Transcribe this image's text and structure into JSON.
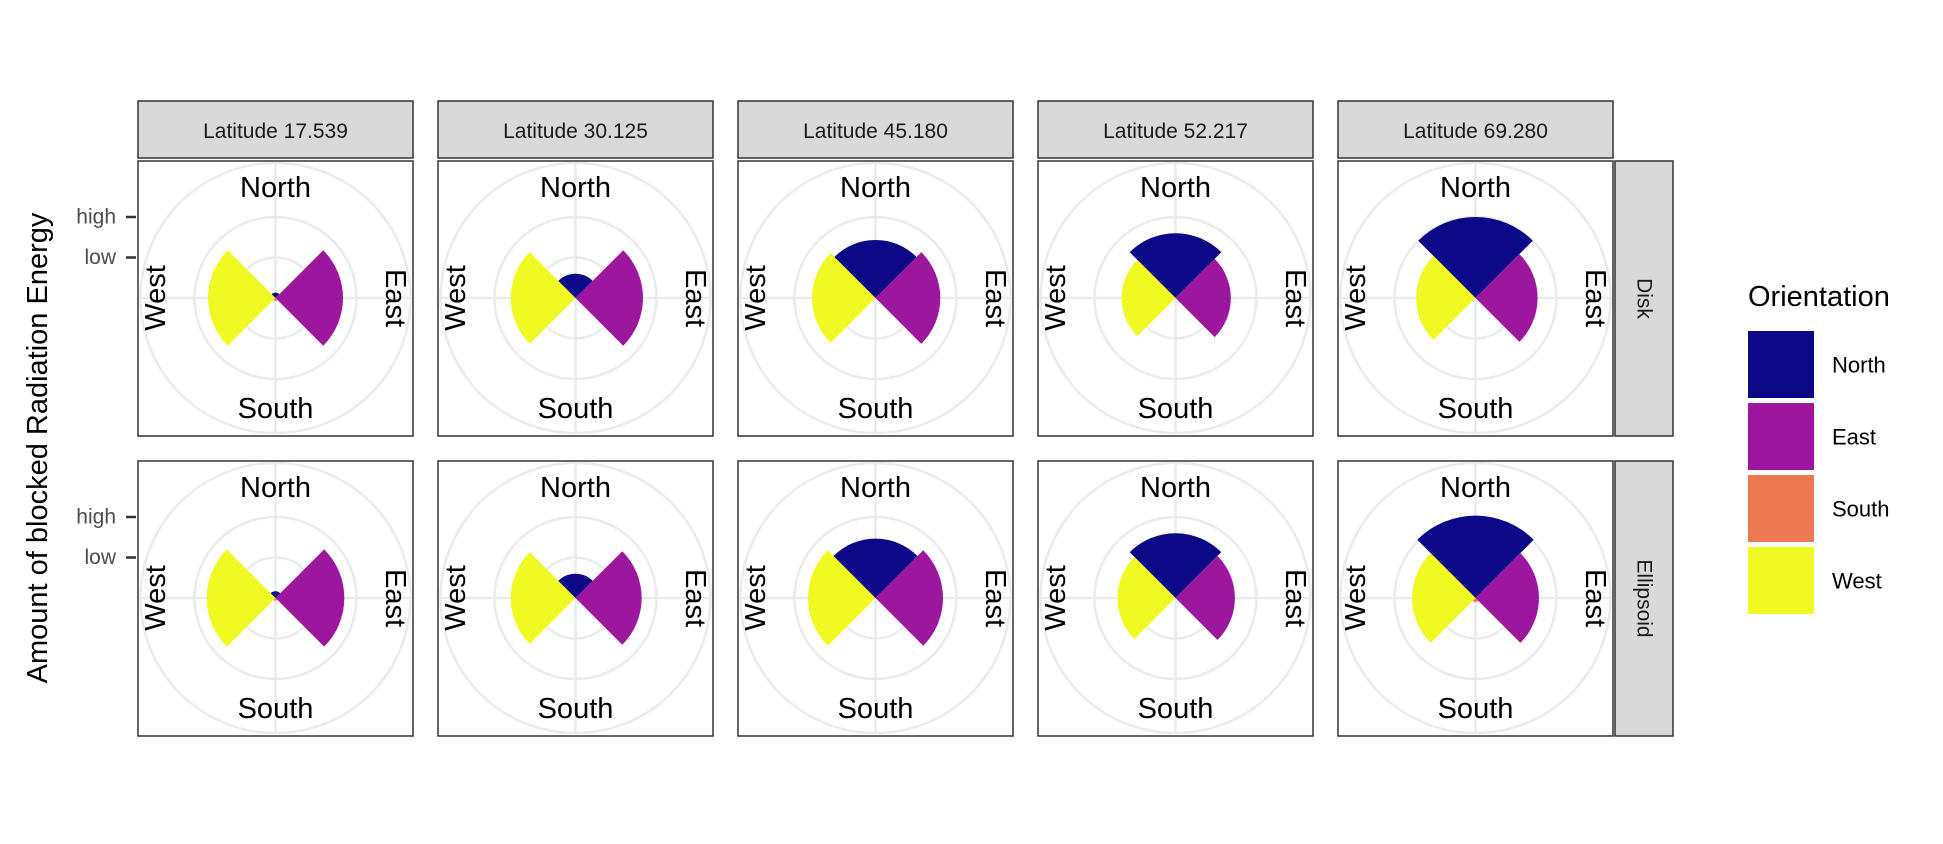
{
  "chart_data": {
    "type": "polar-bar",
    "ylabel": "Amount of blocked Radiation Energy",
    "y_ticks": [
      {
        "label": "low",
        "value": 0.3
      },
      {
        "label": "high",
        "value": 0.6
      }
    ],
    "ylim": [
      0,
      1
    ],
    "directions": [
      "North",
      "East",
      "South",
      "West"
    ],
    "columns": [
      "Latitude 17.539",
      "Latitude 30.125",
      "Latitude 45.180",
      "Latitude 52.217",
      "Latitude 69.280"
    ],
    "rows": [
      "Disk",
      "Ellipsoid"
    ],
    "legend": {
      "title": "Orientation",
      "entries": [
        {
          "label": "North",
          "color": "#0d0887"
        },
        {
          "label": "East",
          "color": "#9c179e"
        },
        {
          "label": "South",
          "color": "#ed7953"
        },
        {
          "label": "West",
          "color": "#f0f921"
        }
      ]
    },
    "panels": [
      {
        "row": "Disk",
        "column": "Latitude 17.539",
        "North": 0.04,
        "East": 0.5,
        "South": 0.02,
        "West": 0.5
      },
      {
        "row": "Disk",
        "column": "Latitude 30.125",
        "North": 0.18,
        "East": 0.5,
        "South": 0.0,
        "West": 0.48
      },
      {
        "row": "Disk",
        "column": "Latitude 45.180",
        "North": 0.43,
        "East": 0.48,
        "South": 0.0,
        "West": 0.47
      },
      {
        "row": "Disk",
        "column": "Latitude 52.217",
        "North": 0.48,
        "East": 0.41,
        "South": 0.0,
        "West": 0.4
      },
      {
        "row": "Disk",
        "column": "Latitude 69.280",
        "North": 0.6,
        "East": 0.46,
        "South": 0.0,
        "West": 0.44
      },
      {
        "row": "Ellipsoid",
        "column": "Latitude 17.539",
        "North": 0.05,
        "East": 0.51,
        "South": 0.02,
        "West": 0.51
      },
      {
        "row": "Ellipsoid",
        "column": "Latitude 30.125",
        "North": 0.18,
        "East": 0.49,
        "South": 0.0,
        "West": 0.48
      },
      {
        "row": "Ellipsoid",
        "column": "Latitude 45.180",
        "North": 0.44,
        "East": 0.5,
        "South": 0.0,
        "West": 0.5
      },
      {
        "row": "Ellipsoid",
        "column": "Latitude 52.217",
        "North": 0.48,
        "East": 0.44,
        "South": 0.0,
        "West": 0.43
      },
      {
        "row": "Ellipsoid",
        "column": "Latitude 69.280",
        "North": 0.61,
        "East": 0.47,
        "South": 0.03,
        "West": 0.47
      }
    ]
  }
}
